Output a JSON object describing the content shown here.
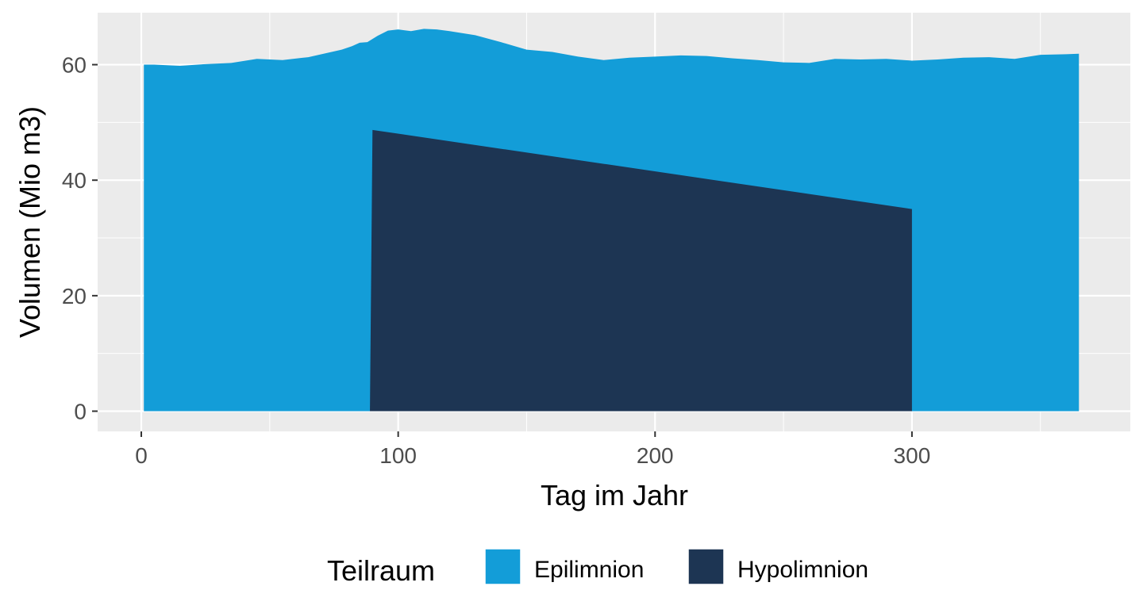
{
  "chart_data": {
    "type": "area",
    "xlabel": "Tag im Jahr",
    "ylabel": "Volumen (Mio m3)",
    "xlim": [
      -17,
      385
    ],
    "ylim": [
      -3.5,
      69
    ],
    "x_ticks": [
      0,
      100,
      200,
      300
    ],
    "y_ticks": [
      0,
      20,
      40,
      60
    ],
    "grid": true,
    "legend": {
      "title": "Teilraum",
      "position": "bottom",
      "entries": [
        "Epilimnion",
        "Hypolimnion"
      ]
    },
    "colors": {
      "panel": "#ebebeb",
      "grid": "#ffffff",
      "tick": "#333333",
      "Epilimnion": "#139dd8",
      "Hypolimnion": "#1d3553"
    },
    "series": [
      {
        "name": "Epilimnion",
        "x": [
          1,
          5,
          15,
          25,
          35,
          45,
          55,
          65,
          72,
          78,
          82,
          85,
          88,
          92,
          96,
          100,
          105,
          110,
          115,
          120,
          130,
          140,
          150,
          160,
          170,
          180,
          190,
          200,
          210,
          220,
          230,
          240,
          250,
          260,
          270,
          280,
          290,
          300,
          310,
          320,
          330,
          340,
          350,
          360,
          365
        ],
        "values": [
          60,
          60,
          59.8,
          60.1,
          60.3,
          61,
          60.8,
          61.3,
          62,
          62.6,
          63.2,
          63.8,
          63.9,
          65,
          65.9,
          66.1,
          65.8,
          66.2,
          66.1,
          65.8,
          65.1,
          63.9,
          62.6,
          62.2,
          61.4,
          60.8,
          61.2,
          61.4,
          61.6,
          61.5,
          61.1,
          60.8,
          60.4,
          60.3,
          61,
          60.9,
          61,
          60.7,
          60.9,
          61.2,
          61.3,
          61,
          61.7,
          61.8,
          61.9
        ]
      },
      {
        "name": "Hypolimnion",
        "x": [
          89,
          90,
          300
        ],
        "values": [
          0,
          48.7,
          35
        ]
      }
    ]
  }
}
